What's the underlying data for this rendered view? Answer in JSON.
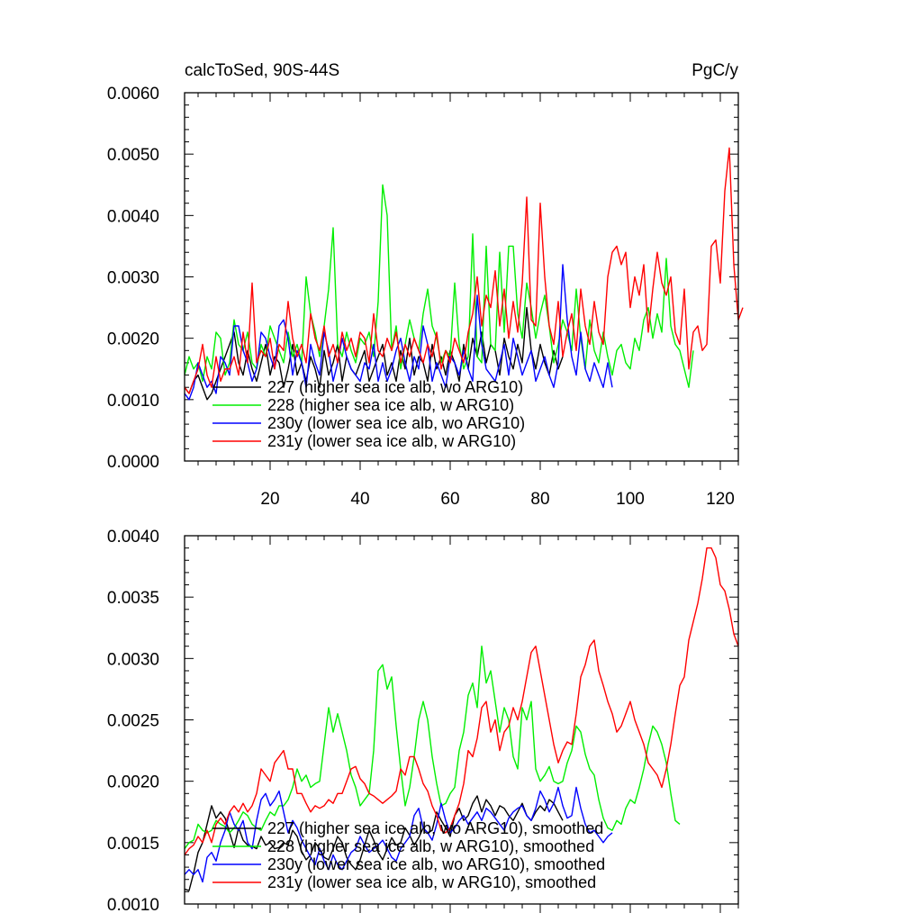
{
  "chart_data": [
    {
      "type": "line",
      "title_left": "calcToSed, 90S-44S",
      "title_right": "PgC/y",
      "xlim": [
        1,
        124
      ],
      "ylim": [
        0.0,
        0.006
      ],
      "xticks": [
        20,
        40,
        60,
        80,
        100,
        120
      ],
      "xtick_labels": [
        "20",
        "40",
        "60",
        "80",
        "100",
        "120"
      ],
      "yticks": [
        0.0,
        0.001,
        0.002,
        0.003,
        0.004,
        0.005,
        0.006
      ],
      "ytick_labels": [
        "0.0000",
        "0.0010",
        "0.0020",
        "0.0030",
        "0.0040",
        "0.0050",
        "0.0060"
      ],
      "legend_position": "lower-left",
      "series": [
        {
          "name": "227 (higher sea ice alb, wo ARG10)",
          "color": "#000000",
          "x_start": 1,
          "values": [
            0.0012,
            0.0011,
            0.0013,
            0.0014,
            0.0012,
            0.001,
            0.0011,
            0.0013,
            0.0015,
            0.0017,
            0.0019,
            0.0021,
            0.0016,
            0.0014,
            0.0018,
            0.0015,
            0.0013,
            0.0016,
            0.0019,
            0.0014,
            0.0017,
            0.0016,
            0.0012,
            0.0015,
            0.0019,
            0.0014,
            0.0016,
            0.0013,
            0.0017,
            0.0015,
            0.0012,
            0.0018,
            0.0014,
            0.0016,
            0.0019,
            0.0013,
            0.0017,
            0.0015,
            0.0014,
            0.0016,
            0.0018,
            0.0013,
            0.0015,
            0.0017,
            0.0019,
            0.0014,
            0.0016,
            0.0013,
            0.0018,
            0.0015,
            0.002,
            0.0014,
            0.0017,
            0.0016,
            0.0013,
            0.0019,
            0.0015,
            0.0017,
            0.0014,
            0.0018,
            0.0016,
            0.0013,
            0.0019,
            0.0015,
            0.002,
            0.0017,
            0.0021,
            0.0016,
            0.0019,
            0.0018,
            0.0014,
            0.002,
            0.0017,
            0.0015,
            0.0019,
            0.0016,
            0.0025,
            0.0018,
            0.0015,
            0.0019,
            0.0016,
            0.0014,
            0.0018,
            0.0015,
            0.0017
          ]
        },
        {
          "name": "228 (higher sea ice alb, w ARG10)",
          "color": "#00ee00",
          "x_start": 1,
          "values": [
            0.0014,
            0.0017,
            0.0015,
            0.0016,
            0.0013,
            0.0017,
            0.0015,
            0.0021,
            0.002,
            0.0014,
            0.0016,
            0.0023,
            0.0019,
            0.0018,
            0.0021,
            0.0016,
            0.0015,
            0.0019,
            0.0017,
            0.0022,
            0.002,
            0.0018,
            0.0016,
            0.0021,
            0.0017,
            0.0019,
            0.0016,
            0.003,
            0.0024,
            0.0021,
            0.0017,
            0.0022,
            0.0028,
            0.0038,
            0.0019,
            0.0017,
            0.0021,
            0.0018,
            0.0016,
            0.002,
            0.0019,
            0.0021,
            0.0017,
            0.0026,
            0.0045,
            0.004,
            0.0018,
            0.0022,
            0.0015,
            0.0019,
            0.0023,
            0.002,
            0.0018,
            0.0024,
            0.0028,
            0.0022,
            0.002,
            0.0016,
            0.0018,
            0.0017,
            0.0029,
            0.0019,
            0.0015,
            0.0017,
            0.0037,
            0.0017,
            0.0016,
            0.0035,
            0.0019,
            0.0018,
            0.0034,
            0.0021,
            0.0035,
            0.0035,
            0.0024,
            0.002,
            0.0029,
            0.0025,
            0.002,
            0.0024,
            0.0027,
            0.0022,
            0.0016,
            0.0019,
            0.0023,
            0.0021,
            0.0018,
            0.0028,
            0.002,
            0.0015,
            0.0023,
            0.0018,
            0.0016,
            0.0021,
            0.0017,
            0.0014,
            0.0018,
            0.0019,
            0.0016,
            0.0015,
            0.002,
            0.0018,
            0.0023,
            0.0025,
            0.002,
            0.0024,
            0.0021,
            0.0033,
            0.0022,
            0.0019,
            0.0018,
            0.0015,
            0.0012,
            0.0018
          ]
        },
        {
          "name": "230y (lower sea ice alb, wo ARG10)",
          "color": "#0000ff",
          "x_start": 1,
          "values": [
            0.0011,
            0.001,
            0.0012,
            0.0016,
            0.0014,
            0.0012,
            0.0013,
            0.0011,
            0.0017,
            0.0016,
            0.0014,
            0.0022,
            0.0022,
            0.0018,
            0.0016,
            0.0013,
            0.0015,
            0.0021,
            0.002,
            0.0017,
            0.0015,
            0.0022,
            0.0023,
            0.002,
            0.0014,
            0.0018,
            0.0016,
            0.0012,
            0.0019,
            0.0016,
            0.0014,
            0.0021,
            0.0018,
            0.0013,
            0.0016,
            0.002,
            0.0017,
            0.0015,
            0.0014,
            0.0013,
            0.0016,
            0.0015,
            0.0019,
            0.0013,
            0.0016,
            0.0013,
            0.0015,
            0.0018,
            0.002,
            0.0016,
            0.0013,
            0.0017,
            0.0015,
            0.0022,
            0.0019,
            0.0013,
            0.0016,
            0.0014,
            0.0012,
            0.0017,
            0.0016,
            0.0014,
            0.0018,
            0.0015,
            0.0013,
            0.0027,
            0.0019,
            0.0015,
            0.0014,
            0.0013,
            0.0016,
            0.0019,
            0.0014,
            0.002,
            0.0017,
            0.0014,
            0.0016,
            0.0018,
            0.0013,
            0.0015,
            0.0017,
            0.0014,
            0.0012,
            0.0016,
            0.0032,
            0.0023,
            0.0017,
            0.0014,
            0.0021,
            0.0015,
            0.0013,
            0.0016,
            0.0014,
            0.0012,
            0.0016,
            0.0012
          ]
        },
        {
          "name": "231y (lower sea ice alb, w ARG10)",
          "color": "#ff0000",
          "x_start": 1,
          "values": [
            0.0012,
            0.0011,
            0.0013,
            0.0015,
            0.0019,
            0.0014,
            0.0012,
            0.0017,
            0.0013,
            0.0015,
            0.0015,
            0.0017,
            0.0014,
            0.0021,
            0.0016,
            0.0029,
            0.0016,
            0.0018,
            0.0017,
            0.002,
            0.0015,
            0.0019,
            0.0018,
            0.0026,
            0.002,
            0.0017,
            0.0019,
            0.0016,
            0.0024,
            0.002,
            0.0018,
            0.0022,
            0.0017,
            0.0019,
            0.0016,
            0.0021,
            0.0018,
            0.002,
            0.0017,
            0.0021,
            0.002,
            0.0016,
            0.0024,
            0.0018,
            0.0017,
            0.002,
            0.0018,
            0.0021,
            0.0016,
            0.0019,
            0.0017,
            0.002,
            0.0018,
            0.0016,
            0.0019,
            0.0017,
            0.0021,
            0.0015,
            0.0018,
            0.0016,
            0.002,
            0.0018,
            0.0016,
            0.0021,
            0.0024,
            0.003,
            0.0022,
            0.0027,
            0.0025,
            0.0031,
            0.0022,
            0.0028,
            0.002,
            0.0026,
            0.0021,
            0.0029,
            0.0043,
            0.0023,
            0.0022,
            0.0042,
            0.003,
            0.0022,
            0.0019,
            0.0026,
            0.0017,
            0.0021,
            0.0024,
            0.0018,
            0.0028,
            0.0022,
            0.0019,
            0.0026,
            0.0021,
            0.0019,
            0.003,
            0.0034,
            0.0035,
            0.0032,
            0.0034,
            0.0025,
            0.003,
            0.0027,
            0.0032,
            0.0021,
            0.0028,
            0.0034,
            0.0029,
            0.0027,
            0.003,
            0.0021,
            0.0019,
            0.0028,
            0.0015,
            0.0021,
            0.0022,
            0.0018,
            0.0019,
            0.0035,
            0.0036,
            0.0029,
            0.0044,
            0.0051,
            0.0032,
            0.0023,
            0.0025
          ]
        }
      ]
    },
    {
      "type": "line",
      "xlim": [
        1,
        124
      ],
      "ylim": [
        0.001,
        0.004
      ],
      "xticks": [
        20,
        40,
        60,
        80,
        100,
        120
      ],
      "yticks": [
        0.001,
        0.0015,
        0.002,
        0.0025,
        0.003,
        0.0035,
        0.004
      ],
      "ytick_labels": [
        "0.0010",
        "0.0015",
        "0.0020",
        "0.0025",
        "0.0030",
        "0.0035",
        "0.0040"
      ],
      "legend_position": "lower-left",
      "series": [
        {
          "name": "227 (higher sea ice alb, wo ARG10), smoothed",
          "color": "#000000",
          "x_start": 1,
          "values": [
            0.00112,
            0.00111,
            0.00125,
            0.00142,
            0.0015,
            0.00165,
            0.0018,
            0.0017,
            0.00175,
            0.0017,
            0.00158,
            0.00146,
            0.00162,
            0.00152,
            0.00148,
            0.00147,
            0.00145,
            0.00155,
            0.00148,
            0.0015,
            0.00145,
            0.00146,
            0.0015,
            0.00148,
            0.0016,
            0.00155,
            0.00143,
            0.00136,
            0.0014,
            0.0015,
            0.00145,
            0.00138,
            0.00136,
            0.00145,
            0.00155,
            0.0015,
            0.00138,
            0.00132,
            0.00128,
            0.00136,
            0.00148,
            0.0016,
            0.00152,
            0.00142,
            0.00136,
            0.00145,
            0.00154,
            0.00148,
            0.0015,
            0.00162,
            0.00156,
            0.00148,
            0.00154,
            0.00162,
            0.00158,
            0.0016,
            0.00175,
            0.00168,
            0.00162,
            0.00155,
            0.00172,
            0.00178,
            0.00168,
            0.00172,
            0.00182,
            0.00188,
            0.00175,
            0.00185,
            0.0018,
            0.00172,
            0.0018,
            0.00178,
            0.00172,
            0.00168,
            0.00175,
            0.00182,
            0.00172,
            0.00168,
            0.00175,
            0.0018,
            0.00176,
            0.00185,
            0.00182,
            0.00175,
            0.00168
          ]
        },
        {
          "name": "228 (higher sea ice alb, w ARG10), smoothed",
          "color": "#00ee00",
          "x_start": 1,
          "values": [
            0.00145,
            0.0015,
            0.00152,
            0.00165,
            0.0016,
            0.00158,
            0.0016,
            0.00168,
            0.00165,
            0.00163,
            0.00158,
            0.00162,
            0.00168,
            0.00175,
            0.00172,
            0.00165,
            0.00162,
            0.0016,
            0.00168,
            0.00175,
            0.00172,
            0.0018,
            0.0018,
            0.00185,
            0.00195,
            0.0021,
            0.002,
            0.00205,
            0.00195,
            0.00198,
            0.002,
            0.0023,
            0.0026,
            0.0024,
            0.00255,
            0.0024,
            0.00225,
            0.00205,
            0.00195,
            0.0018,
            0.00185,
            0.0019,
            0.00225,
            0.0029,
            0.00295,
            0.00275,
            0.00285,
            0.00245,
            0.0021,
            0.0018,
            0.00195,
            0.0022,
            0.0025,
            0.00265,
            0.0025,
            0.0022,
            0.00198,
            0.0018,
            0.00182,
            0.0019,
            0.00195,
            0.00225,
            0.0024,
            0.0027,
            0.0028,
            0.0026,
            0.0031,
            0.0028,
            0.0029,
            0.00265,
            0.0024,
            0.0026,
            0.0025,
            0.0022,
            0.0021,
            0.0026,
            0.0025,
            0.00265,
            0.0021,
            0.002,
            0.00205,
            0.00212,
            0.002,
            0.00198,
            0.002,
            0.00215,
            0.00225,
            0.00245,
            0.0024,
            0.00222,
            0.0021,
            0.00205,
            0.00185,
            0.0017,
            0.00162,
            0.0016,
            0.00168,
            0.00165,
            0.00178,
            0.00185,
            0.00182,
            0.00195,
            0.0021,
            0.0023,
            0.00245,
            0.0024,
            0.0023,
            0.00215,
            0.0019,
            0.00168,
            0.00165
          ]
        },
        {
          "name": "230y (lower sea ice alb, wo ARG10), smoothed",
          "color": "#0000ff",
          "x_start": 1,
          "values": [
            0.00124,
            0.00128,
            0.00124,
            0.00128,
            0.00118,
            0.00138,
            0.00142,
            0.00135,
            0.0015,
            0.0016,
            0.00175,
            0.00165,
            0.0016,
            0.00168,
            0.0015,
            0.00145,
            0.00168,
            0.00185,
            0.0019,
            0.0018,
            0.00185,
            0.00192,
            0.00175,
            0.00158,
            0.00168,
            0.00162,
            0.00152,
            0.00145,
            0.00138,
            0.00132,
            0.00145,
            0.00135,
            0.00128,
            0.0014,
            0.00132,
            0.00128,
            0.00135,
            0.00142,
            0.00145,
            0.00155,
            0.00148,
            0.00142,
            0.00145,
            0.00148,
            0.00152,
            0.00145,
            0.00138,
            0.00135,
            0.00145,
            0.0015,
            0.00155,
            0.00172,
            0.00178,
            0.00162,
            0.00158,
            0.00152,
            0.00165,
            0.00182,
            0.00168,
            0.00158,
            0.00162,
            0.00168,
            0.00172,
            0.00165,
            0.0017,
            0.00175,
            0.00168,
            0.00178,
            0.00175,
            0.0017,
            0.00165,
            0.0016,
            0.0017,
            0.00175,
            0.00178,
            0.0018,
            0.00172,
            0.00168,
            0.00178,
            0.00192,
            0.00185,
            0.00175,
            0.00182,
            0.00195,
            0.0018,
            0.0017,
            0.00172,
            0.00195,
            0.00178,
            0.00165,
            0.00158,
            0.0016,
            0.00155,
            0.0015,
            0.00155,
            0.00158
          ]
        },
        {
          "name": "231y (lower sea ice alb, w ARG10), smoothed",
          "color": "#ff0000",
          "x_start": 1,
          "values": [
            0.0014,
            0.00145,
            0.00148,
            0.00155,
            0.0015,
            0.0016,
            0.0015,
            0.00165,
            0.0017,
            0.00165,
            0.00175,
            0.0018,
            0.00175,
            0.00182,
            0.00175,
            0.0018,
            0.0019,
            0.0021,
            0.00205,
            0.002,
            0.00215,
            0.0022,
            0.00225,
            0.0021,
            0.0021,
            0.0019,
            0.0019,
            0.00182,
            0.00175,
            0.0018,
            0.00178,
            0.0018,
            0.00185,
            0.00182,
            0.0019,
            0.0019,
            0.002,
            0.0021,
            0.00212,
            0.00202,
            0.00198,
            0.0019,
            0.00188,
            0.00185,
            0.00182,
            0.00185,
            0.00188,
            0.00192,
            0.0021,
            0.00205,
            0.0022,
            0.0022,
            0.0021,
            0.00198,
            0.00192,
            0.0018,
            0.00172,
            0.0016,
            0.00158,
            0.00162,
            0.00172,
            0.00182,
            0.00198,
            0.00225,
            0.0022,
            0.00235,
            0.0026,
            0.00265,
            0.0024,
            0.0025,
            0.00225,
            0.0024,
            0.00245,
            0.0026,
            0.0025,
            0.00265,
            0.00285,
            0.00305,
            0.0031,
            0.0029,
            0.0027,
            0.0025,
            0.0023,
            0.00215,
            0.00225,
            0.00232,
            0.0023,
            0.00255,
            0.00285,
            0.00295,
            0.0031,
            0.00315,
            0.0029,
            0.00278,
            0.00265,
            0.00255,
            0.0024,
            0.00245,
            0.00255,
            0.00265,
            0.0025,
            0.0024,
            0.0023,
            0.00215,
            0.0021,
            0.00205,
            0.00195,
            0.0021,
            0.0023,
            0.00255,
            0.00278,
            0.00285,
            0.00315,
            0.0033,
            0.00345,
            0.00365,
            0.0039,
            0.0039,
            0.00382,
            0.0036,
            0.00355,
            0.0034,
            0.0032,
            0.0031
          ]
        }
      ]
    }
  ]
}
